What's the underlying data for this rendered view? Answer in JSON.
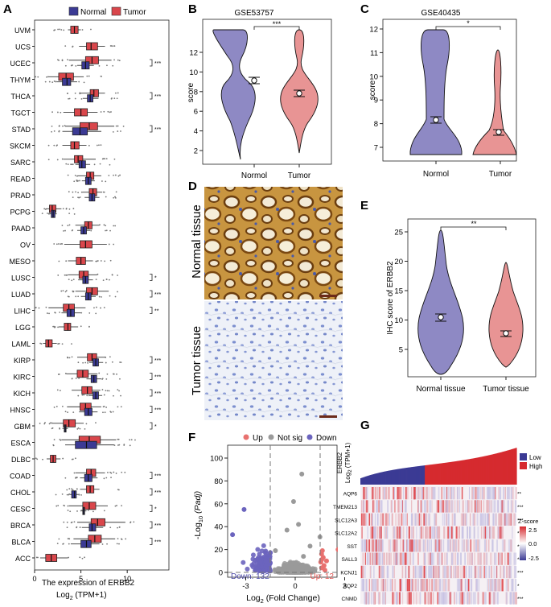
{
  "panels": {
    "A": "A",
    "B": "B",
    "C": "C",
    "D": "D",
    "E": "E",
    "F": "F",
    "G": "G"
  },
  "panelA": {
    "legend": {
      "normal": "Normal",
      "tumor": "Tumor"
    },
    "colors": {
      "normal": "#3b3a94",
      "tumor": "#d9464b"
    },
    "xlabel": "The expression of ERBB2",
    "xlabel2": "Log",
    "xlabel2_sub": "2",
    "xlabel2_tail": " (TPM+1)",
    "xticks": [
      "0",
      "5",
      "10"
    ],
    "xrange": [
      0,
      14.5
    ],
    "rows": [
      {
        "name": "UVM",
        "tumor": [
          3.9,
          4.3,
          4.7,
          3.6,
          5.0
        ]
      },
      {
        "name": "UCS",
        "tumor": [
          5.6,
          6.1,
          6.8,
          4.8,
          7.6
        ]
      },
      {
        "name": "UCEC",
        "tumor": [
          5.5,
          6.2,
          6.9,
          3.7,
          8.3
        ],
        "normal": [
          5.1,
          5.5,
          5.9,
          4.6,
          6.4
        ],
        "sig": "***"
      },
      {
        "name": "THYM",
        "tumor": [
          2.6,
          3.4,
          4.2,
          1.5,
          5.3
        ],
        "normal": [
          3.0,
          3.5,
          3.9,
          2.4,
          4.6
        ]
      },
      {
        "name": "THCA",
        "tumor": [
          6.0,
          6.4,
          6.9,
          5.0,
          7.6
        ],
        "normal": [
          5.7,
          6.0,
          6.3,
          5.2,
          6.9
        ],
        "sig": "***"
      },
      {
        "name": "TGCT",
        "tumor": [
          4.3,
          5.0,
          5.7,
          3.1,
          6.8
        ]
      },
      {
        "name": "STAD",
        "tumor": [
          4.9,
          5.9,
          6.8,
          3.3,
          8.6
        ],
        "normal": [
          4.1,
          4.9,
          5.7,
          3.0,
          7.2
        ],
        "sig": "***"
      },
      {
        "name": "SKCM",
        "tumor": [
          3.9,
          4.3,
          4.8,
          3.0,
          5.6
        ]
      },
      {
        "name": "SARC",
        "tumor": [
          4.3,
          4.7,
          5.2,
          3.1,
          6.6
        ],
        "normal": [
          4.8,
          5.1,
          5.5,
          4.4,
          6.0
        ]
      },
      {
        "name": "READ",
        "tumor": [
          5.6,
          6.0,
          6.4,
          4.6,
          7.2
        ],
        "normal": [
          5.5,
          5.8,
          6.1,
          5.1,
          6.5
        ]
      },
      {
        "name": "PRAD",
        "tumor": [
          5.9,
          6.3,
          6.7,
          5.1,
          7.3
        ],
        "normal": [
          5.9,
          6.2,
          6.5,
          5.4,
          7.0
        ]
      },
      {
        "name": "PCPG",
        "tumor": [
          1.6,
          1.9,
          2.3,
          1.2,
          2.9
        ],
        "normal": [
          1.8,
          2.0,
          2.2,
          1.6,
          2.4
        ]
      },
      {
        "name": "PAAD",
        "tumor": [
          5.4,
          5.8,
          6.2,
          4.4,
          7.0
        ],
        "normal": [
          5.0,
          5.3,
          5.6,
          4.6,
          6.0
        ]
      },
      {
        "name": "OV",
        "tumor": [
          4.9,
          5.5,
          6.2,
          3.2,
          7.8
        ]
      },
      {
        "name": "MESO",
        "tumor": [
          4.5,
          5.0,
          5.5,
          3.6,
          6.3
        ]
      },
      {
        "name": "LUSC",
        "tumor": [
          4.8,
          5.3,
          5.8,
          3.6,
          6.8
        ],
        "normal": [
          5.2,
          5.5,
          5.8,
          4.7,
          6.3
        ],
        "sig": "*"
      },
      {
        "name": "LUAD",
        "tumor": [
          5.6,
          6.2,
          6.8,
          4.4,
          8.0
        ],
        "normal": [
          5.5,
          5.8,
          6.1,
          5.0,
          6.6
        ],
        "sig": "***"
      },
      {
        "name": "LIHC",
        "tumor": [
          3.1,
          3.7,
          4.3,
          1.5,
          5.5
        ],
        "normal": [
          3.5,
          3.9,
          4.3,
          2.9,
          5.0
        ],
        "sig": "**"
      },
      {
        "name": "LGG",
        "tumor": [
          3.2,
          3.6,
          3.9,
          2.6,
          4.7
        ]
      },
      {
        "name": "LAML",
        "tumor": [
          1.2,
          1.5,
          1.9,
          0.9,
          2.4
        ]
      },
      {
        "name": "KIRP",
        "tumor": [
          5.7,
          6.2,
          6.7,
          4.6,
          7.6
        ],
        "normal": [
          6.3,
          6.6,
          6.9,
          5.9,
          7.4
        ],
        "sig": "***"
      },
      {
        "name": "KIRC",
        "tumor": [
          4.6,
          5.2,
          5.8,
          3.4,
          6.8
        ],
        "normal": [
          6.1,
          6.4,
          6.7,
          5.6,
          7.2
        ],
        "sig": "***"
      },
      {
        "name": "KICH",
        "tumor": [
          5.1,
          5.7,
          6.2,
          4.0,
          7.1
        ],
        "normal": [
          6.3,
          6.6,
          6.9,
          5.9,
          7.3
        ],
        "sig": "***"
      },
      {
        "name": "HNSC",
        "tumor": [
          4.9,
          5.5,
          6.1,
          3.5,
          7.2
        ],
        "normal": [
          5.4,
          5.8,
          6.2,
          4.8,
          6.8
        ],
        "sig": "***"
      },
      {
        "name": "GBM",
        "tumor": [
          3.1,
          3.7,
          4.4,
          1.9,
          5.3
        ],
        "normal": [
          3.2,
          3.3,
          3.4,
          3.0,
          3.6
        ],
        "sig": "*"
      },
      {
        "name": "ESCA",
        "tumor": [
          4.8,
          5.9,
          7.1,
          2.9,
          8.8
        ],
        "normal": [
          4.4,
          5.6,
          6.7,
          3.3,
          8.6
        ]
      },
      {
        "name": "DLBC",
        "tumor": [
          1.7,
          2.0,
          2.3,
          1.3,
          2.8
        ]
      },
      {
        "name": "COAD",
        "tumor": [
          5.6,
          6.1,
          6.6,
          4.4,
          7.6
        ],
        "normal": [
          5.4,
          5.8,
          6.2,
          4.9,
          6.8
        ],
        "sig": "***"
      },
      {
        "name": "CHOL",
        "tumor": [
          5.6,
          6.0,
          6.4,
          4.9,
          7.0
        ],
        "normal": [
          4.0,
          4.3,
          4.5,
          3.8,
          4.8
        ],
        "sig": "***"
      },
      {
        "name": "CESC",
        "tumor": [
          5.2,
          5.9,
          6.6,
          3.7,
          7.9
        ],
        "normal": [
          5.2,
          5.3,
          5.4,
          5.1,
          5.6
        ],
        "sig": "*"
      },
      {
        "name": "BRCA",
        "tumor": [
          6.1,
          6.8,
          7.6,
          4.6,
          9.8
        ],
        "normal": [
          5.9,
          6.2,
          6.6,
          5.1,
          7.4
        ],
        "sig": "***"
      },
      {
        "name": "BLCA",
        "tumor": [
          5.8,
          6.5,
          7.2,
          4.2,
          8.7
        ],
        "normal": [
          5.0,
          5.6,
          6.1,
          3.9,
          7.0
        ],
        "sig": "***"
      },
      {
        "name": "ACC",
        "tumor": [
          1.2,
          1.8,
          2.4,
          0.6,
          3.6
        ]
      }
    ]
  },
  "panelB": {
    "title": "GSE53757",
    "ylabel": "score",
    "yticks": [
      "2",
      "4",
      "6",
      "8",
      "10",
      "12"
    ],
    "xcats": [
      "Normol",
      "Tumor"
    ],
    "sig": "***"
  },
  "panelC": {
    "title": "GSE40435",
    "ylabel": "score",
    "yticks": [
      "7",
      "8",
      "9",
      "10",
      "11",
      "12"
    ],
    "xcats": [
      "Normol",
      "Tumor"
    ],
    "sig": "*"
  },
  "panelD": {
    "labels": [
      "Normal tissue",
      "Tumor tissue"
    ]
  },
  "panelE": {
    "ylabel": "IHC score of ERBB2",
    "yticks": [
      "5",
      "10",
      "15",
      "20",
      "25"
    ],
    "xcats": [
      "Normal tissue",
      "Tumor tissue"
    ],
    "sig": "**"
  },
  "panelF": {
    "legend": {
      "up": "Up",
      "notsig": "Not sig",
      "down": "Down"
    },
    "colors": {
      "up": "#e8716f",
      "notsig": "#9a9a9a",
      "down": "#6b64be"
    },
    "xlabel_pre": "Log",
    "xlabel_sub": "2",
    "xlabel_post": " (Fold Change)",
    "ylabel_pre": "-Log",
    "ylabel_sub": "10",
    "ylabel_post": " (Padj)",
    "xticks": [
      "-3",
      "0",
      "3"
    ],
    "yticks": [
      "0",
      "20",
      "40",
      "60",
      "80",
      "100"
    ],
    "down_label": "Down: 132",
    "up_label": "Up: 12"
  },
  "panelG": {
    "ylabel": "ERBB2",
    "ylabel2": "Log",
    "ylabel2_sub": "2",
    "ylabel2_tail": " (TPM+1)",
    "legend": {
      "low": "Low",
      "high": "High"
    },
    "colorbar": {
      "title": "Z-score",
      "ticks": [
        "2.5",
        "0.0",
        "-2.5"
      ]
    },
    "genes": [
      {
        "name": "AQP6",
        "sig": "**"
      },
      {
        "name": "TMEM213",
        "sig": "***"
      },
      {
        "name": "SLC12A3",
        "sig": "***"
      },
      {
        "name": "SLC12A2",
        "sig": "***"
      },
      {
        "name": "SST",
        "sig": "***"
      },
      {
        "name": "SALL3",
        "sig": "*"
      },
      {
        "name": "KCNJ1",
        "sig": "***"
      },
      {
        "name": "AQP2",
        "sig": "*"
      },
      {
        "name": "CNMD",
        "sig": "***"
      }
    ]
  }
}
